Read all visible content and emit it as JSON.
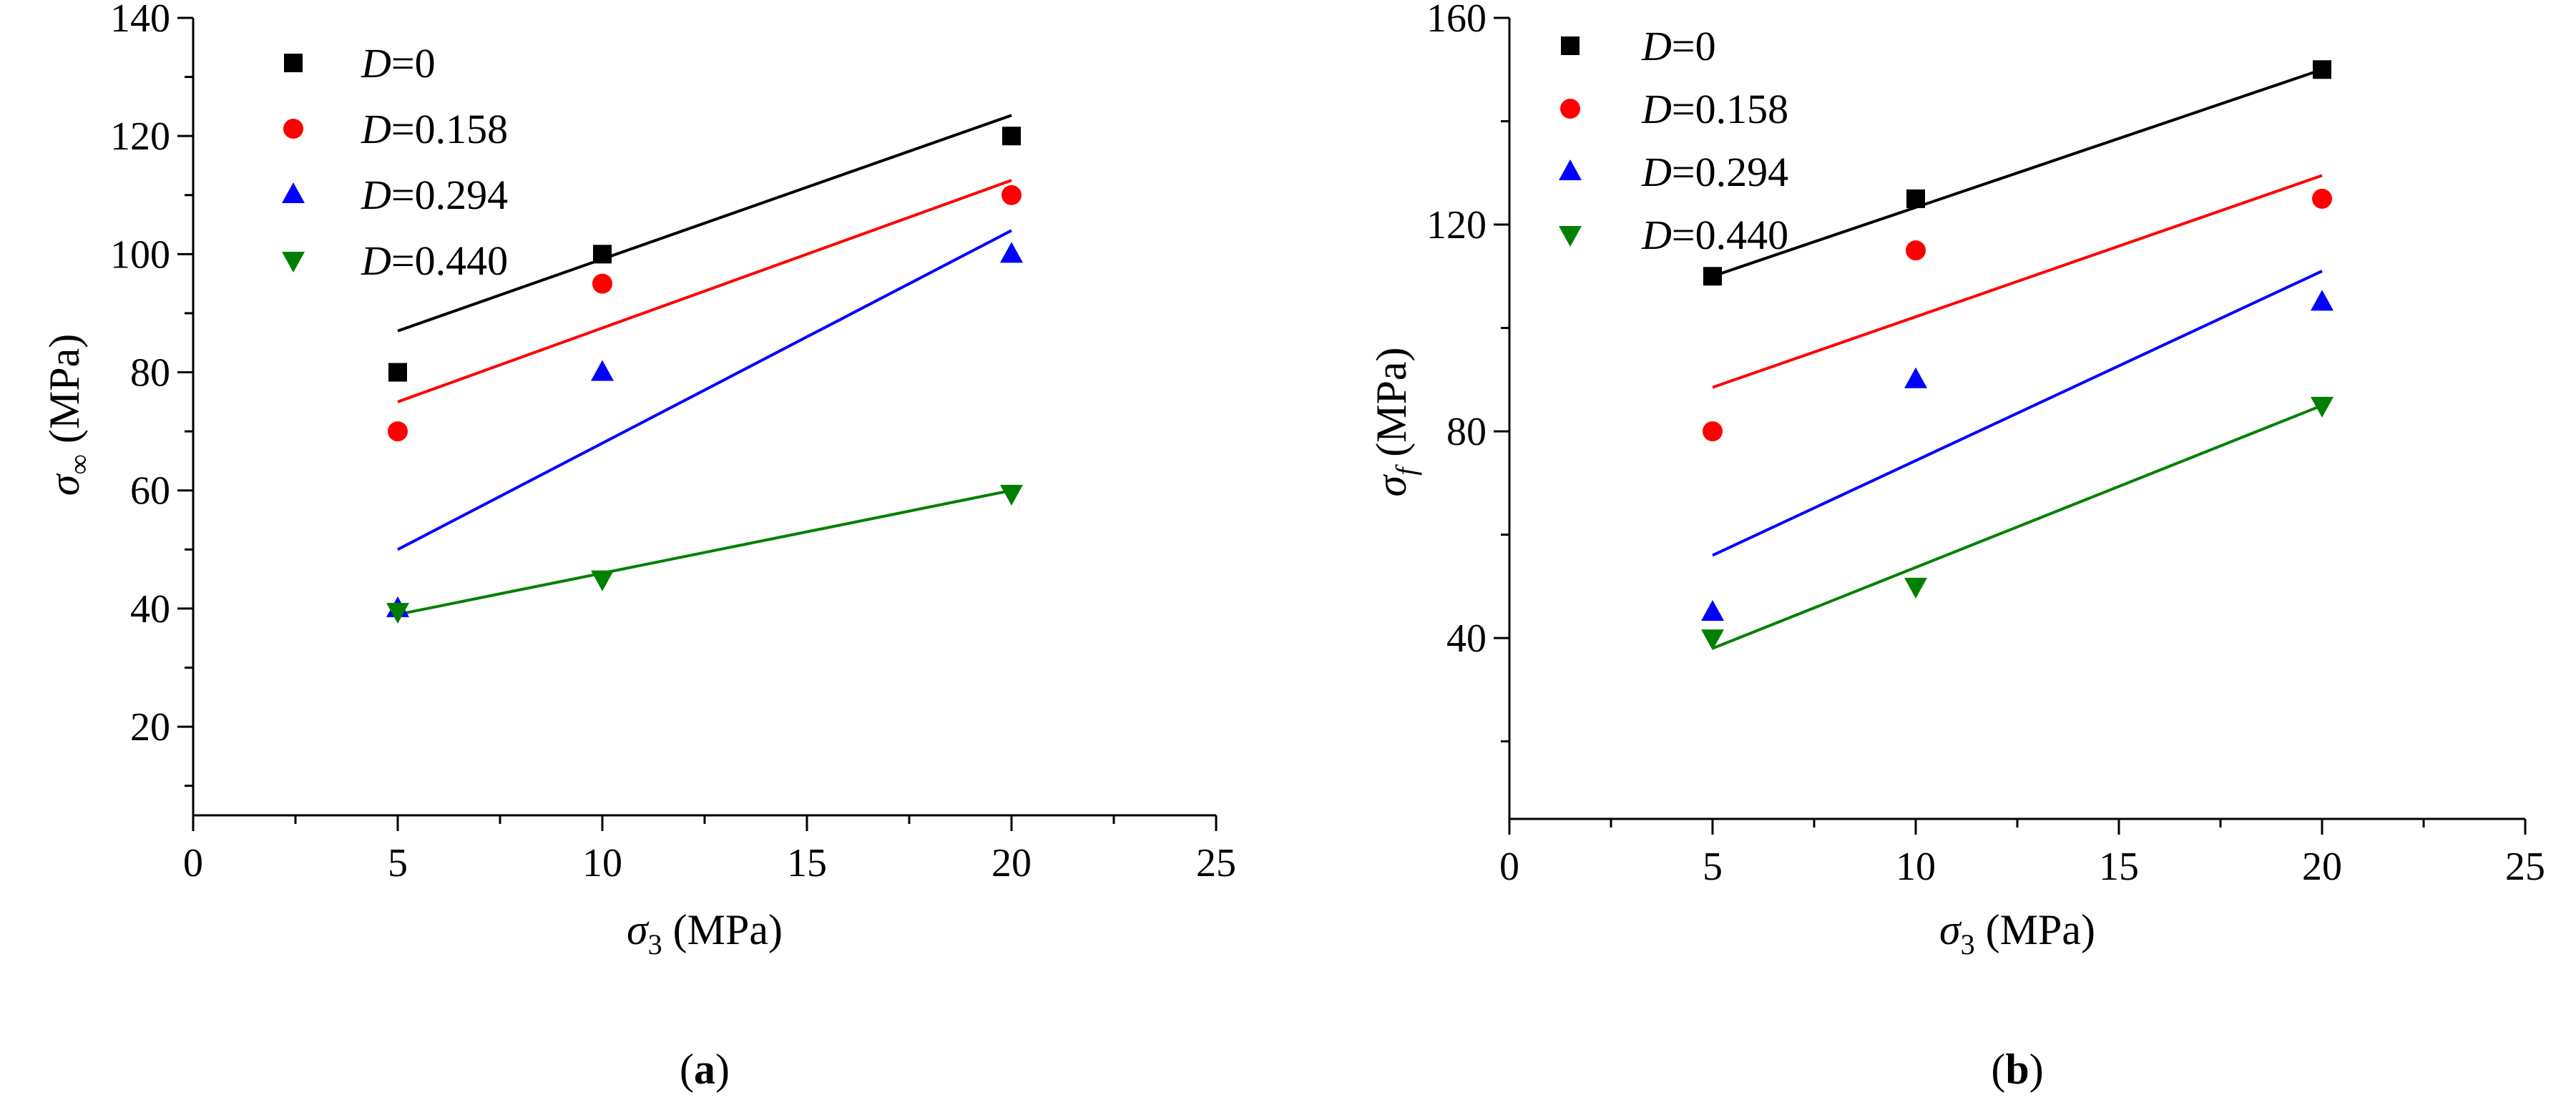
{
  "colors": {
    "black": "#000000",
    "red": "#ff0000",
    "blue": "#0000ff",
    "green": "#008000"
  },
  "chart_data": [
    {
      "type": "scatter",
      "panel": "a",
      "panel_label": {
        "open": "(",
        "letter": "a",
        "close": ")"
      },
      "xlabel": {
        "symbol": "σ",
        "sub": "3",
        "unit": " (MPa)"
      },
      "ylabel": {
        "symbol": "σ",
        "sub": "∞",
        "unit": " (MPa)"
      },
      "xlim": [
        0,
        25
      ],
      "ylim": [
        5,
        140
      ],
      "xticks": [
        0,
        5,
        10,
        15,
        20,
        25
      ],
      "yticks": [
        20,
        40,
        60,
        80,
        100,
        120,
        140
      ],
      "legend_position": "top-left",
      "series": [
        {
          "name_var": "D",
          "name_val": "=0",
          "color": "#000000",
          "marker": "square",
          "x": [
            5,
            10,
            20
          ],
          "y": [
            80,
            100,
            120
          ],
          "fit": {
            "x": [
              5,
              20
            ],
            "y": [
              87,
              123.5
            ]
          }
        },
        {
          "name_var": "D",
          "name_val": "=0.158",
          "color": "#ff0000",
          "marker": "circle",
          "x": [
            5,
            10,
            20
          ],
          "y": [
            70,
            95,
            110
          ],
          "fit": {
            "x": [
              5,
              20
            ],
            "y": [
              75,
              112.5
            ]
          }
        },
        {
          "name_var": "D",
          "name_val": "=0.294",
          "color": "#0000ff",
          "marker": "triangle-up",
          "x": [
            5,
            10,
            20
          ],
          "y": [
            40,
            80,
            100
          ],
          "fit": {
            "x": [
              5,
              20
            ],
            "y": [
              50,
              104
            ]
          }
        },
        {
          "name_var": "D",
          "name_val": "=0.440",
          "color": "#008000",
          "marker": "triangle-down",
          "x": [
            5,
            10,
            20
          ],
          "y": [
            39.5,
            45,
            59.5
          ],
          "fit": {
            "x": [
              5,
              20
            ],
            "y": [
              39,
              60
            ]
          }
        }
      ]
    },
    {
      "type": "scatter",
      "panel": "b",
      "panel_label": {
        "open": "(",
        "letter": "b",
        "close": ")"
      },
      "xlabel": {
        "symbol": "σ",
        "sub": "3",
        "unit": " (MPa)"
      },
      "ylabel": {
        "symbol": "σ",
        "sub": "f",
        "unit": " (MPa)"
      },
      "xlim": [
        0,
        25
      ],
      "ylim": [
        5,
        160
      ],
      "xticks": [
        0,
        5,
        10,
        15,
        20,
        25
      ],
      "yticks": [
        40,
        80,
        120,
        160
      ],
      "legend_position": "top-left",
      "series": [
        {
          "name_var": "D",
          "name_val": "=0",
          "color": "#000000",
          "marker": "square",
          "x": [
            5,
            10,
            20
          ],
          "y": [
            110,
            125,
            150
          ],
          "fit": {
            "x": [
              5,
              20
            ],
            "y": [
              110,
              150
            ]
          }
        },
        {
          "name_var": "D",
          "name_val": "=0.158",
          "color": "#ff0000",
          "marker": "circle",
          "x": [
            5,
            10,
            20
          ],
          "y": [
            80,
            115,
            125
          ],
          "fit": {
            "x": [
              5,
              20
            ],
            "y": [
              88.5,
              129.5
            ]
          }
        },
        {
          "name_var": "D",
          "name_val": "=0.294",
          "color": "#0000ff",
          "marker": "triangle-up",
          "x": [
            5,
            10,
            20
          ],
          "y": [
            45,
            90,
            105
          ],
          "fit": {
            "x": [
              5,
              20
            ],
            "y": [
              56,
              111
            ]
          }
        },
        {
          "name_var": "D",
          "name_val": "=0.440",
          "color": "#008000",
          "marker": "triangle-down",
          "x": [
            5,
            10,
            20
          ],
          "y": [
            40,
            50,
            85
          ],
          "fit": {
            "x": [
              5,
              20
            ],
            "y": [
              38,
              85
            ]
          }
        }
      ]
    }
  ]
}
